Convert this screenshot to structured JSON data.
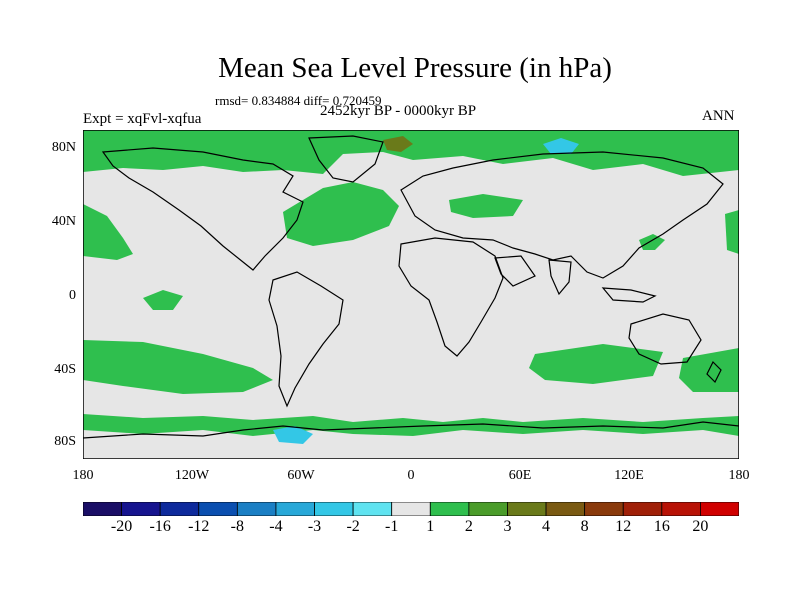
{
  "title": "Mean Sea Level Pressure (in hPa)",
  "stats": "rmsd= 0.834884  diff= 0.720459",
  "experiment": "Expt = xqFvl-xqfua",
  "period": "2452kyr BP - 0000kyr BP",
  "season": "ANN",
  "lat_labels": [
    "80N",
    "40N",
    "0",
    "40S",
    "80S"
  ],
  "lon_labels": [
    "180",
    "120W",
    "60W",
    "0",
    "60E",
    "120E",
    "180"
  ],
  "colorbar": {
    "labels": [
      "-20",
      "-16",
      "-12",
      "-8",
      "-4",
      "-3",
      "-2",
      "-1",
      "1",
      "2",
      "3",
      "4",
      "8",
      "12",
      "16",
      "20"
    ],
    "colors": [
      "#1a0e66",
      "#16148f",
      "#0e2a9c",
      "#0b4fb0",
      "#1b7fc4",
      "#28a8d8",
      "#33c7e6",
      "#5fe3f0",
      "#e6e6e6",
      "#2fbf4e",
      "#4a9c2a",
      "#6a7a1a",
      "#7a5a12",
      "#8a3a0c",
      "#a02008",
      "#b81206",
      "#d00000"
    ]
  },
  "map": {
    "ocean_color": "#e6e6e6",
    "positive_anomaly_color": "#2fbf4e",
    "strong_positive_color": "#6a7a1a",
    "negative_anomaly_color": "#33c7e6"
  }
}
